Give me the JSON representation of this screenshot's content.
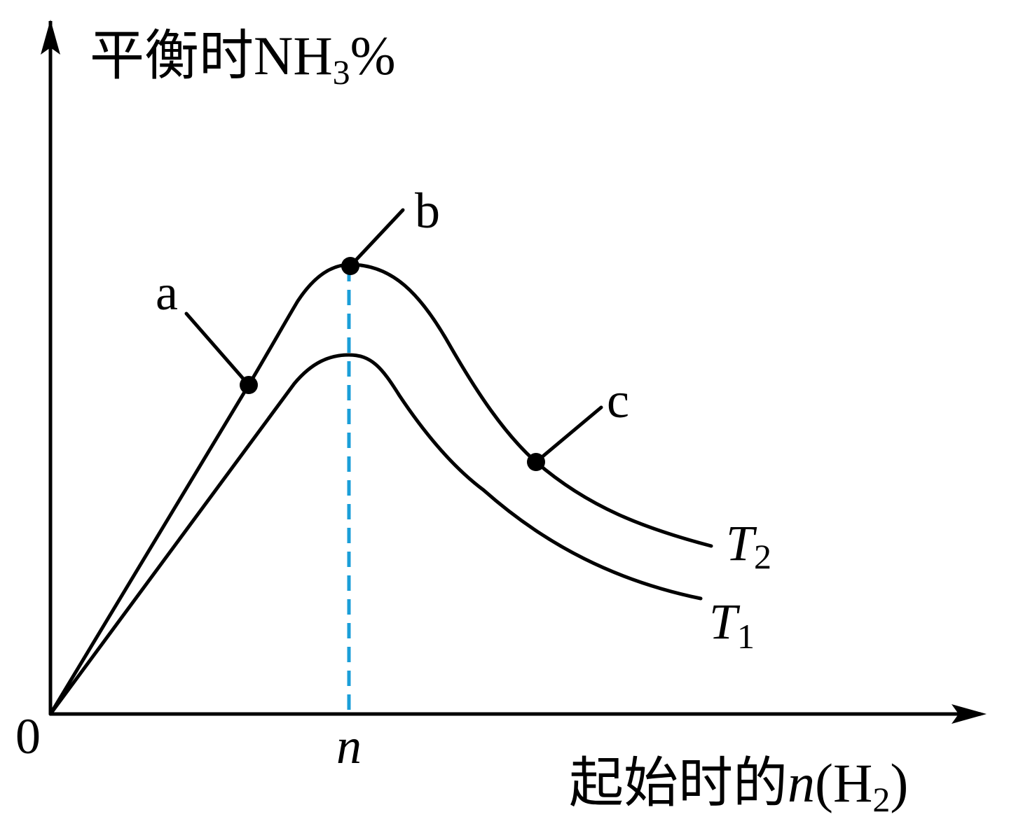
{
  "y_label": {
    "main": "平衡时NH",
    "sub": "3",
    "tail": "%"
  },
  "x_label": {
    "main": "起始时的",
    "var": "n",
    "open": "(H",
    "sub": "2",
    "close": ")"
  },
  "origin": "0",
  "x_marker": "n",
  "points": [
    {
      "label": "a"
    },
    {
      "label": "b"
    },
    {
      "label": "c"
    }
  ],
  "curves": [
    {
      "name": "T",
      "sub": "2"
    },
    {
      "name": "T",
      "sub": "1"
    }
  ]
}
